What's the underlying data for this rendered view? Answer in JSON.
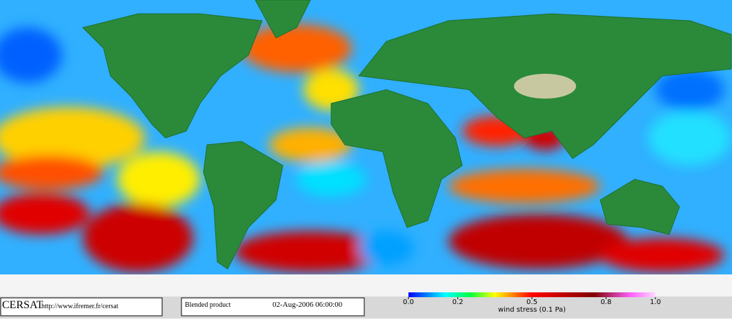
{
  "map": {
    "product": "Blended product",
    "date": "02-Aug-2006 06:00:00"
  },
  "footer": {
    "logo": "CERSAT",
    "url": "http://www.ifremer.fr/cersat"
  },
  "colorbar": {
    "label": "wind stress (0.1 Pa)",
    "lim": [
      0,
      1
    ],
    "ticks": [
      {
        "value": 0,
        "label": "0.0"
      },
      0.2,
      0.5,
      0.8,
      {
        "value": 1,
        "label": "1.0"
      }
    ]
  }
}
